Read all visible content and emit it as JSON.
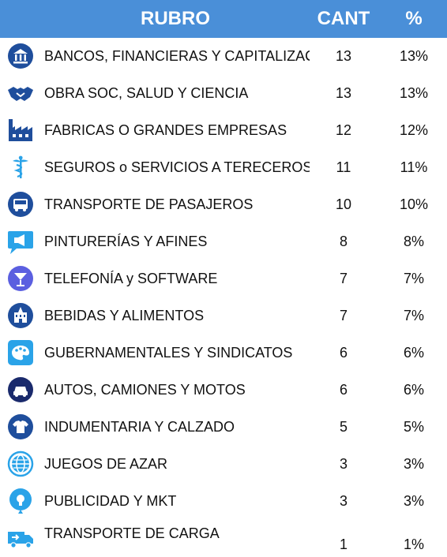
{
  "header": {
    "rubro": "RUBRO",
    "cant": "CANT",
    "pct": "%"
  },
  "colors": {
    "header_bg": "#4a8fd8",
    "icon_dark": "#1f4e9c",
    "icon_light": "#2aa3e8"
  },
  "chart_data": {
    "type": "table",
    "columns": [
      "RUBRO",
      "CANT",
      "%"
    ],
    "rows": [
      {
        "rubro": "BANCOS, FINANCIERAS Y CAPITALIZACIÓN",
        "cant": 13,
        "pct": "13%",
        "icon": "bank-icon"
      },
      {
        "rubro": "OBRA SOC, SALUD Y CIENCIA",
        "cant": 13,
        "pct": "13%",
        "icon": "handshake-icon"
      },
      {
        "rubro": "FABRICAS O GRANDES EMPRESAS",
        "cant": 12,
        "pct": "12%",
        "icon": "factory-icon"
      },
      {
        "rubro": "SEGUROS o SERVICIOS A TERECEROS",
        "cant": 11,
        "pct": "11%",
        "icon": "caduceus-icon"
      },
      {
        "rubro": "TRANSPORTE DE PASAJEROS",
        "cant": 10,
        "pct": "10%",
        "icon": "bus-icon"
      },
      {
        "rubro": "PINTURERÍAS Y AFINES",
        "cant": 8,
        "pct": "8%",
        "icon": "megaphone-icon"
      },
      {
        "rubro": "TELEFONÍA y SOFTWARE",
        "cant": 7,
        "pct": "7%",
        "icon": "cocktail-icon"
      },
      {
        "rubro": "BEBIDAS Y ALIMENTOS",
        "cant": 7,
        "pct": "7%",
        "icon": "building-icon"
      },
      {
        "rubro": "GUBERNAMENTALES Y SINDICATOS",
        "cant": 6,
        "pct": "6%",
        "icon": "palette-icon"
      },
      {
        "rubro": "AUTOS, CAMIONES Y MOTOS",
        "cant": 6,
        "pct": "6%",
        "icon": "car-icon"
      },
      {
        "rubro": "INDUMENTARIA Y CALZADO",
        "cant": 5,
        "pct": "5%",
        "icon": "shirt-icon"
      },
      {
        "rubro": "JUEGOS DE AZAR",
        "cant": 3,
        "pct": "3%",
        "icon": "globe-icon"
      },
      {
        "rubro": "PUBLICIDAD Y MKT",
        "cant": 3,
        "pct": "3%",
        "icon": "lightbulb-icon"
      },
      {
        "rubro": "TRANSPORTE DE CARGA",
        "cant": 1,
        "pct": "1%",
        "icon": "truck-icon"
      }
    ]
  }
}
